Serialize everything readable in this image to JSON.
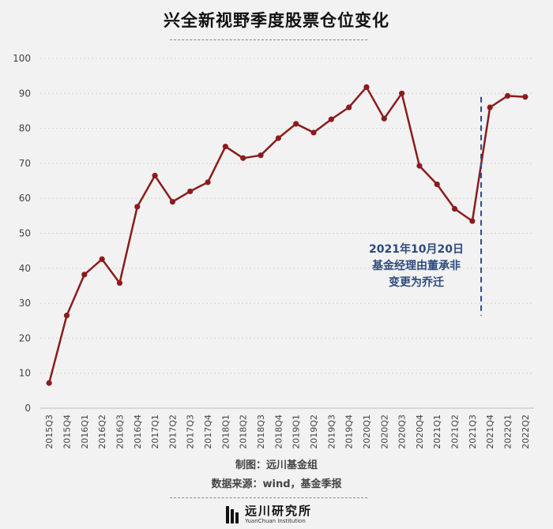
{
  "title": "兴全新视野季度股票仓位变化",
  "credits": {
    "line1": "制图：远川基金组",
    "line2": "数据来源：wind，基金季报"
  },
  "logo": {
    "name_cn": "远川研究所",
    "name_en": "YuanChuan Institution"
  },
  "chart_data": {
    "type": "line",
    "categories": [
      "2015Q3",
      "2015Q4",
      "2016Q1",
      "2016Q2",
      "2016Q3",
      "2016Q4",
      "2017Q1",
      "2017Q2",
      "2017Q3",
      "2017Q4",
      "2018Q1",
      "2018Q2",
      "2018Q3",
      "2018Q4",
      "2019Q1",
      "2019Q2",
      "2019Q3",
      "2019Q4",
      "2020Q1",
      "2020Q2",
      "2020Q3",
      "2020Q4",
      "2021Q1",
      "2021Q2",
      "2021Q3",
      "2021Q4",
      "2022Q1",
      "2022Q2"
    ],
    "series": [
      {
        "values": [
          7.2,
          26.5,
          38.2,
          42.6,
          35.8,
          57.6,
          66.5,
          59.0,
          62.0,
          64.6,
          74.8,
          71.5,
          72.3,
          77.2,
          81.3,
          78.8,
          82.6,
          86.0,
          91.8,
          82.8,
          90.0,
          69.3,
          64.0,
          57.0,
          53.5,
          86.0,
          89.3,
          89.0
        ],
        "color": "#8b1c1c"
      }
    ],
    "ylim": [
      0,
      100
    ],
    "yticks": [
      0,
      10,
      20,
      30,
      40,
      50,
      60,
      70,
      80,
      90,
      100
    ],
    "grid": true,
    "annotation": {
      "lines": [
        "2021年10月20日",
        "基金经理由董承非",
        "变更为乔迁"
      ],
      "color": "#2e4a7d",
      "at_category": "2021Q3"
    }
  }
}
